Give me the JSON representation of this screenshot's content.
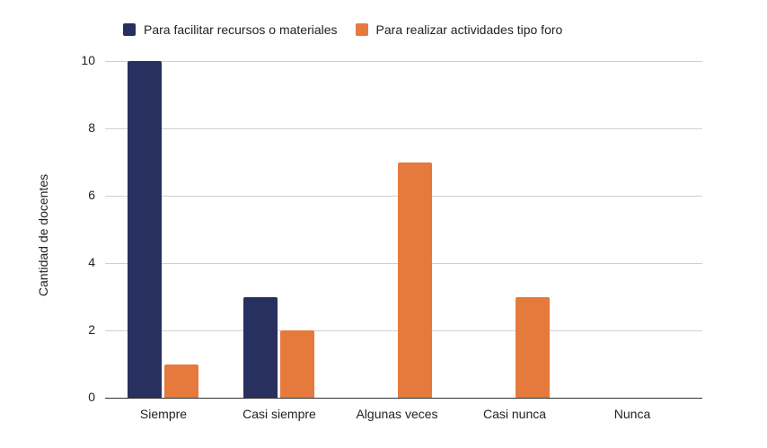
{
  "chart_data": {
    "type": "bar",
    "title": "",
    "xlabel": "",
    "ylabel": "Cantidad de docentes",
    "ylim": [
      0,
      10
    ],
    "yticks": [
      0,
      2,
      4,
      6,
      8,
      10
    ],
    "grid": true,
    "legend_position": "top",
    "categories": [
      "Siempre",
      "Casi siempre",
      "Algunas veces",
      "Casi nunca",
      "Nunca"
    ],
    "series": [
      {
        "name": "Para facilitar recursos o materiales",
        "color": "#283060",
        "values": [
          10,
          3,
          0,
          0,
          0
        ]
      },
      {
        "name": "Para realizar actividades tipo foro",
        "color": "#E57A3C",
        "values": [
          1,
          2,
          7,
          3,
          0
        ]
      }
    ]
  },
  "legend": {
    "items": [
      {
        "label": "Para facilitar recursos o materiales",
        "color": "#283060"
      },
      {
        "label": "Para realizar actividades tipo foro",
        "color": "#E57A3C"
      }
    ]
  },
  "axis": {
    "ylabel": "Cantidad de docentes",
    "yticks": [
      "0",
      "2",
      "4",
      "6",
      "8",
      "10"
    ],
    "xticks": [
      "Siempre",
      "Casi siempre",
      "Algunas veces",
      "Casi nunca",
      "Nunca"
    ]
  }
}
